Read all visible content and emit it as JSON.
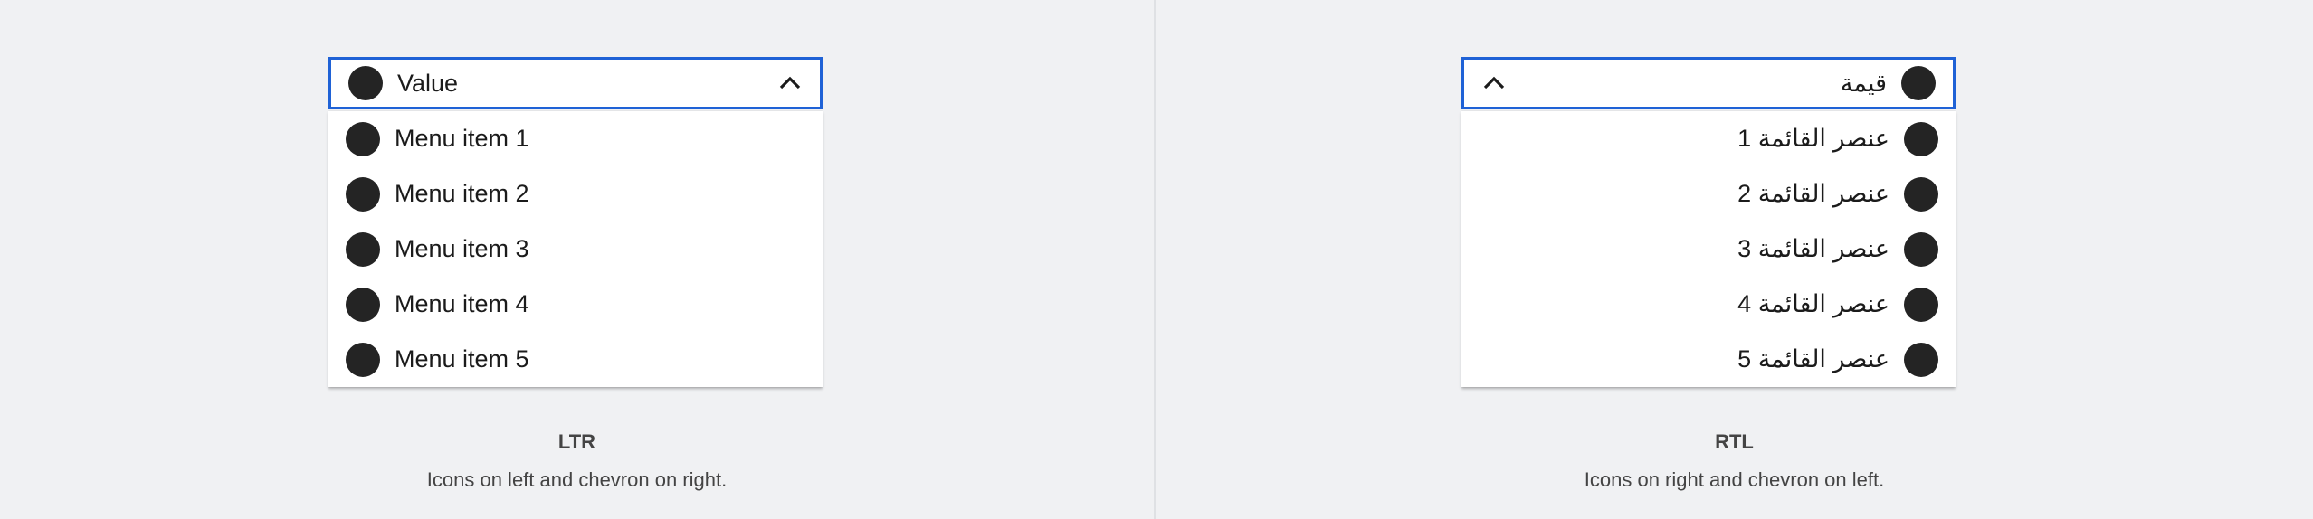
{
  "ltr": {
    "value": "Value",
    "items": [
      "Menu item 1",
      "Menu item 2",
      "Menu item 3",
      "Menu item 4",
      "Menu item 5"
    ],
    "caption_title": "LTR",
    "caption_desc": "Icons on left and chevron on right."
  },
  "rtl": {
    "value": "قيمة",
    "items": [
      "عنصر القائمة 1",
      "عنصر القائمة 2",
      "عنصر القائمة 3",
      "عنصر القائمة 4",
      "عنصر القائمة 5"
    ],
    "caption_title": "RTL",
    "caption_desc": "Icons on right and chevron on left."
  },
  "icons": {
    "item_icon": "circle-icon",
    "chevron": "chevron-up-icon"
  },
  "colors": {
    "focus_border": "#1f62d6",
    "icon": "#242424",
    "background": "#f0f1f3"
  }
}
